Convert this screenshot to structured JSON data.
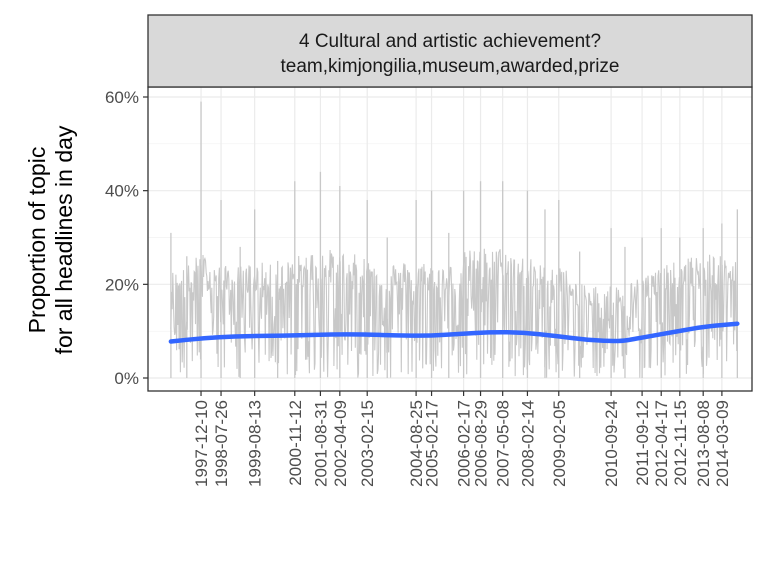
{
  "chart_data": {
    "type": "line",
    "facet_title": [
      "4 Cultural and artistic achievement?",
      "team,kimjongilia,museum,awarded,prize"
    ],
    "ylabel": [
      "Proportion of topic",
      "for all headlines in day"
    ],
    "xlabel": "",
    "ylim": [
      0,
      62
    ],
    "y_ticks": [
      0,
      20,
      40,
      60
    ],
    "y_tick_labels": [
      "0%",
      "20%",
      "40%",
      "60%"
    ],
    "x_range": [
      "1996-12-01",
      "2014-10-01"
    ],
    "x_tick_labels": [
      "1997-12-10",
      "1998-07-26",
      "1999-08-13",
      "2000-11-12",
      "2001-08-31",
      "2002-04-09",
      "2003-02-15",
      "2004-08-25",
      "2005-02-17",
      "2006-02-17",
      "2006-08-29",
      "2007-05-08",
      "2008-02-14",
      "2009-02-05",
      "2010-09-24",
      "2011-09-12",
      "2012-04-17",
      "2012-11-15",
      "2013-08-08",
      "2014-03-09"
    ],
    "grid": true,
    "colors": {
      "raw": "#c8c8c8",
      "smooth": "#3366ff",
      "strip": "#d9d9d9",
      "grid": "#ebebeb",
      "border": "#333333"
    },
    "series": [
      {
        "kind": "daily proportion",
        "summary": {
          "x": [
            "1997-01-01",
            "1997-07-01",
            "1997-12-10",
            "1998-07-26",
            "1999-03-01",
            "1999-08-13",
            "2000-05-01",
            "2000-11-12",
            "2001-08-31",
            "2002-04-09",
            "2003-02-15",
            "2003-10-01",
            "2004-08-25",
            "2005-02-17",
            "2005-09-01",
            "2006-02-17",
            "2006-08-29",
            "2007-05-08",
            "2008-02-14",
            "2008-09-01",
            "2009-02-05",
            "2009-10-01",
            "2010-09-24",
            "2011-03-01",
            "2011-09-12",
            "2012-04-17",
            "2012-11-15",
            "2013-08-08",
            "2014-03-09",
            "2014-09-01"
          ],
          "peak": [
            31,
            26,
            59,
            38,
            28,
            36,
            25,
            42,
            44,
            41,
            38,
            30,
            38,
            40,
            31,
            40,
            42,
            42,
            40,
            36,
            38,
            27,
            32,
            28,
            30,
            32,
            30,
            32,
            33,
            36
          ],
          "typical_high": [
            23,
            24,
            27,
            24,
            24,
            25,
            24,
            26,
            28,
            27,
            26,
            25,
            25,
            25,
            24,
            27,
            28,
            28,
            26,
            24,
            25,
            20,
            20,
            20,
            22,
            24,
            25,
            27,
            26,
            25
          ]
        }
      },
      {
        "kind": "smoothed trend",
        "x": [
          "1997-01-01",
          "1998-01-01",
          "1999-01-01",
          "2000-01-01",
          "2001-01-01",
          "2002-01-01",
          "2003-01-01",
          "2004-01-01",
          "2005-01-01",
          "2006-01-01",
          "2007-01-01",
          "2008-01-01",
          "2009-01-01",
          "2010-01-01",
          "2011-01-01",
          "2011-07-01",
          "2012-01-01",
          "2012-07-01",
          "2013-01-01",
          "2013-07-01",
          "2014-01-01",
          "2014-09-01"
        ],
        "y": [
          7.8,
          8.5,
          8.9,
          9.0,
          9.1,
          9.3,
          9.3,
          9.1,
          9.0,
          9.4,
          9.8,
          9.7,
          9.0,
          8.1,
          7.8,
          8.4,
          9.0,
          9.6,
          10.2,
          10.8,
          11.2,
          11.6
        ]
      }
    ]
  }
}
